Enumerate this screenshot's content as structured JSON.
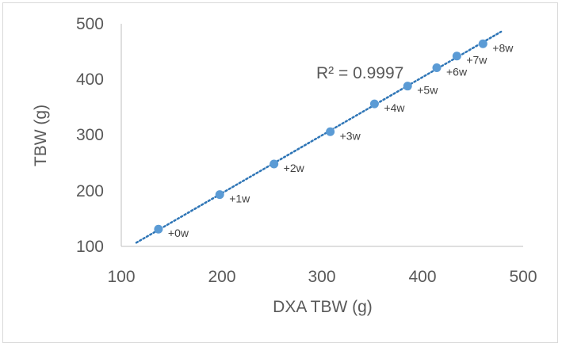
{
  "chart_data": {
    "type": "scatter",
    "title": "",
    "xlabel": "DXA TBW (g)",
    "ylabel": "TBW (g)",
    "xlim": [
      100,
      500
    ],
    "ylim": [
      100,
      500
    ],
    "x_ticks": [
      "100",
      "200",
      "300",
      "400",
      "500"
    ],
    "y_ticks": [
      "100",
      "200",
      "300",
      "400",
      "500"
    ],
    "grid": false,
    "legend": "none",
    "marker_color": "#5b9bd5",
    "trendline": {
      "style": "dotted",
      "color": "#2e75b6",
      "x_range": [
        115,
        478
      ]
    },
    "annotation": "R² = 0.9997",
    "series": [
      {
        "points": [
          {
            "x": 137,
            "y": 131,
            "label": "+0w"
          },
          {
            "x": 198,
            "y": 193,
            "label": "+1w"
          },
          {
            "x": 252,
            "y": 248,
            "label": "+2w"
          },
          {
            "x": 308,
            "y": 306,
            "label": "+3w"
          },
          {
            "x": 352,
            "y": 356,
            "label": "+4w"
          },
          {
            "x": 385,
            "y": 388,
            "label": "+5w"
          },
          {
            "x": 414,
            "y": 421,
            "label": "+6w"
          },
          {
            "x": 434,
            "y": 442,
            "label": "+7w"
          },
          {
            "x": 460,
            "y": 464,
            "label": "+8w"
          }
        ]
      }
    ]
  }
}
